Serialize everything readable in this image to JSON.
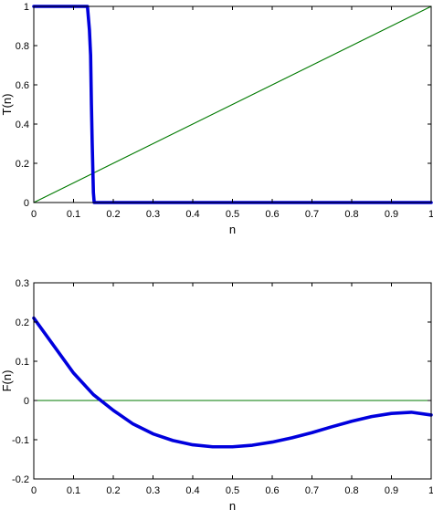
{
  "chart_data": [
    {
      "type": "line",
      "title": "",
      "xlabel": "n",
      "ylabel": "T(n)",
      "xlim": [
        0,
        1
      ],
      "ylim": [
        0,
        1
      ],
      "xticks": [
        0,
        0.1,
        0.2,
        0.3,
        0.4,
        0.5,
        0.6,
        0.7,
        0.8,
        0.9,
        1
      ],
      "xtick_labels": [
        "0",
        "0.1",
        "0.2",
        "0.3",
        "0.4",
        "0.5",
        "0.6",
        "0.7",
        "0.8",
        "0.9",
        "1"
      ],
      "yticks": [
        0,
        0.2,
        0.4,
        0.6,
        0.8,
        1
      ],
      "ytick_labels": [
        "0",
        "0.2",
        "0.4",
        "0.6",
        "0.8",
        "1"
      ],
      "grid": false,
      "series": [
        {
          "color": "#0000dd",
          "width": "thick",
          "x": [
            0,
            0.135,
            0.14,
            0.143,
            0.145,
            0.147,
            0.15,
            0.152,
            1
          ],
          "y": [
            1,
            1,
            0.88,
            0.75,
            0.5,
            0.3,
            0.05,
            0,
            0
          ]
        },
        {
          "color": "#007a00",
          "width": "thin",
          "x": [
            0,
            1
          ],
          "y": [
            0,
            1
          ]
        }
      ]
    },
    {
      "type": "line",
      "title": "",
      "xlabel": "n",
      "ylabel": "F(n)",
      "xlim": [
        0,
        1
      ],
      "ylim": [
        -0.2,
        0.3
      ],
      "xticks": [
        0,
        0.1,
        0.2,
        0.3,
        0.4,
        0.5,
        0.6,
        0.7,
        0.8,
        0.9,
        1
      ],
      "xtick_labels": [
        "0",
        "0.1",
        "0.2",
        "0.3",
        "0.4",
        "0.5",
        "0.6",
        "0.7",
        "0.8",
        "0.9",
        "1"
      ],
      "yticks": [
        -0.2,
        -0.1,
        0,
        0.1,
        0.2,
        0.3
      ],
      "ytick_labels": [
        "-0.2",
        "-0.1",
        "0",
        "0.1",
        "0.2",
        "0.3"
      ],
      "grid": false,
      "series": [
        {
          "color": "#0000dd",
          "width": "thick",
          "x": [
            0,
            0.05,
            0.1,
            0.15,
            0.2,
            0.25,
            0.3,
            0.35,
            0.4,
            0.45,
            0.5,
            0.55,
            0.6,
            0.65,
            0.7,
            0.75,
            0.8,
            0.85,
            0.9,
            0.95,
            1
          ],
          "y": [
            0.21,
            0.14,
            0.07,
            0.015,
            -0.025,
            -0.06,
            -0.085,
            -0.102,
            -0.113,
            -0.118,
            -0.118,
            -0.114,
            -0.106,
            -0.095,
            -0.082,
            -0.067,
            -0.053,
            -0.041,
            -0.033,
            -0.03,
            -0.037
          ]
        },
        {
          "color": "#007a00",
          "width": "thin",
          "x": [
            0,
            1
          ],
          "y": [
            0,
            0
          ]
        }
      ]
    }
  ]
}
